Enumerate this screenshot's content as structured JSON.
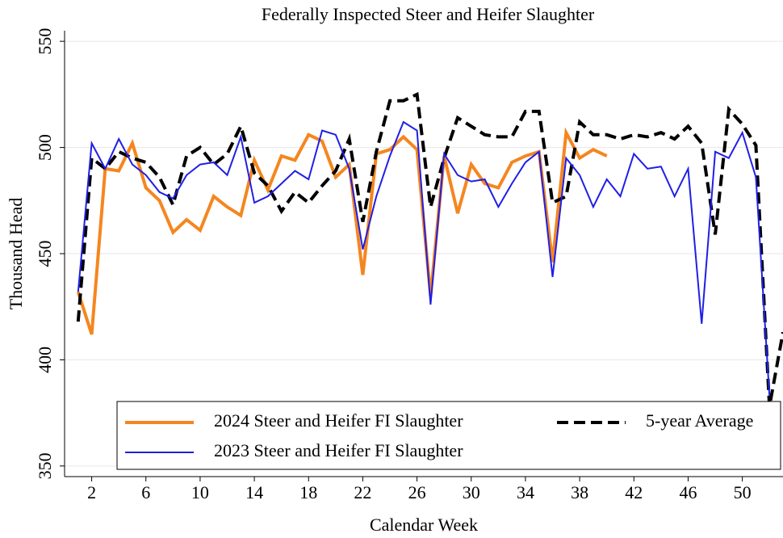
{
  "chart_data": {
    "type": "line",
    "title": "Federally Inspected Steer and Heifer Slaughter",
    "x_label": "Calendar Week",
    "y_label": "Thousand Head",
    "x": [
      1,
      2,
      3,
      4,
      5,
      6,
      7,
      8,
      9,
      10,
      11,
      12,
      13,
      14,
      15,
      16,
      17,
      18,
      19,
      20,
      21,
      22,
      23,
      24,
      25,
      26,
      27,
      28,
      29,
      30,
      31,
      32,
      33,
      34,
      35,
      36,
      37,
      38,
      39,
      40,
      41,
      42,
      43,
      44,
      45,
      46,
      47,
      48,
      49,
      50,
      51,
      52,
      53
    ],
    "series": [
      {
        "name": "2024 Steer and Heifer FI Slaughter",
        "color": "#f5861f",
        "width": 4,
        "dash": false,
        "values": [
          432,
          412,
          490,
          489,
          502,
          481,
          475,
          460,
          466,
          461,
          477,
          472,
          468,
          494,
          480,
          496,
          494,
          506,
          503,
          486,
          492,
          440,
          497,
          499,
          505,
          499,
          430,
          496,
          469,
          492,
          483,
          481,
          493,
          496,
          498,
          446,
          507,
          495,
          499,
          496,
          null,
          null,
          null,
          null,
          null,
          null,
          null,
          null,
          null,
          null,
          null,
          null,
          null
        ]
      },
      {
        "name": "5-year Average",
        "color": "#000000",
        "width": 4,
        "dash": true,
        "values": [
          418,
          495,
          490,
          498,
          495,
          493,
          486,
          473,
          496,
          500,
          492,
          497,
          510,
          488,
          482,
          470,
          479,
          474,
          482,
          489,
          504,
          465,
          498,
          522,
          522,
          525,
          472,
          495,
          514,
          510,
          506,
          505,
          505,
          517,
          517,
          474,
          477,
          512,
          506,
          506,
          504,
          506,
          505,
          507,
          504,
          510,
          502,
          459,
          518,
          511,
          501,
          378,
          413
        ]
      },
      {
        "name": "2023 Steer and Heifer FI Slaughter",
        "color": "#1f1fe6",
        "width": 2,
        "dash": false,
        "values": [
          432,
          502,
          490,
          504,
          492,
          487,
          479,
          476,
          487,
          492,
          493,
          487,
          505,
          474,
          477,
          483,
          489,
          485,
          508,
          506,
          490,
          452,
          477,
          496,
          512,
          508,
          426,
          497,
          487,
          484,
          485,
          472,
          483,
          493,
          498,
          439,
          495,
          487,
          472,
          485,
          477,
          497,
          490,
          491,
          477,
          490,
          417,
          498,
          495,
          507,
          486,
          383,
          null
        ]
      }
    ],
    "xlim": [
      0,
      53
    ],
    "xticks": [
      2,
      6,
      10,
      14,
      18,
      22,
      26,
      30,
      34,
      38,
      42,
      46,
      50
    ],
    "ylim": [
      345,
      555
    ],
    "yticks": [
      350,
      400,
      450,
      500,
      550
    ],
    "grid": true
  }
}
